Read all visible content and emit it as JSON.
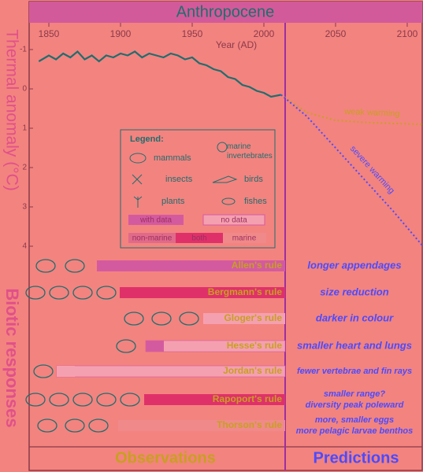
{
  "title": "Anthropocene",
  "chart_data": {
    "type": "line",
    "y_label": "Thermal anomaly (°C)",
    "x_label": "Year (AD)",
    "xlim": [
      1839,
      2111
    ],
    "xticks": [
      1850,
      1900,
      1950,
      2000,
      2050,
      2100
    ],
    "ylim": [
      -1.66,
      4.14
    ],
    "yticks": [
      -1,
      0,
      1,
      2,
      3,
      4
    ],
    "y_inverted": true,
    "series": [
      {
        "color": "#1f6e6e",
        "style": "solid",
        "x": [
          1843,
          1850,
          1855,
          1860,
          1865,
          1870,
          1875,
          1880,
          1885,
          1890,
          1895,
          1900,
          1905,
          1910,
          1915,
          1920,
          1925,
          1930,
          1935,
          1940,
          1945,
          1950,
          1955,
          1960,
          1965,
          1970,
          1975,
          1980,
          1985,
          1990,
          1995,
          2000,
          2005,
          2012
        ],
        "values": [
          -0.7,
          -0.85,
          -0.75,
          -0.9,
          -0.8,
          -0.95,
          -0.75,
          -0.85,
          -0.7,
          -0.85,
          -0.8,
          -0.9,
          -0.85,
          -0.95,
          -0.8,
          -0.9,
          -0.85,
          -0.8,
          -0.9,
          -0.85,
          -0.75,
          -0.8,
          -0.65,
          -0.6,
          -0.5,
          -0.45,
          -0.3,
          -0.25,
          -0.1,
          -0.05,
          0.05,
          0.1,
          0.2,
          0.15
        ]
      },
      {
        "name": "weak warming",
        "color": "#c8a020",
        "style": "dotted",
        "x": [
          2012,
          2030,
          2050,
          2070,
          2090,
          2111
        ],
        "values": [
          0.15,
          0.6,
          0.8,
          0.85,
          0.88,
          0.9
        ]
      },
      {
        "name": "severe warming",
        "color": "#4b4bff",
        "style": "dotted",
        "x": [
          2012,
          2030,
          2050,
          2070,
          2090,
          2111
        ],
        "values": [
          0.15,
          0.7,
          1.5,
          2.3,
          3.1,
          4.0
        ]
      }
    ]
  },
  "legend": {
    "title": "Legend:",
    "taxa": [
      "mammals",
      "marine invertebrates",
      "insects",
      "birds",
      "plants",
      "fishes"
    ],
    "data": [
      "with data",
      "no data"
    ],
    "habitat": [
      "non-marine",
      "both",
      "marine"
    ]
  },
  "section_label": "Biotic responses",
  "rules": [
    {
      "name": "Allen's rule",
      "effect": [
        "longer appendages"
      ]
    },
    {
      "name": "Bergmann's rule",
      "effect": [
        "size reduction"
      ]
    },
    {
      "name": "Gloger's rule",
      "effect": [
        "darker in colour"
      ]
    },
    {
      "name": "Hesse's rule",
      "effect": [
        "smaller heart and lungs"
      ]
    },
    {
      "name": "Jordan's rule",
      "effect": [
        "fewer vertebrae and fin rays"
      ]
    },
    {
      "name": "Rapoport's rule",
      "effect": [
        "smaller range?",
        "diversity peak poleward"
      ]
    },
    {
      "name": "Thorson's rule",
      "effect": [
        "more, smaller eggs",
        "more pelagic larvae benthos"
      ]
    }
  ],
  "footer": {
    "observations": "Observations",
    "predictions": "Predictions"
  }
}
